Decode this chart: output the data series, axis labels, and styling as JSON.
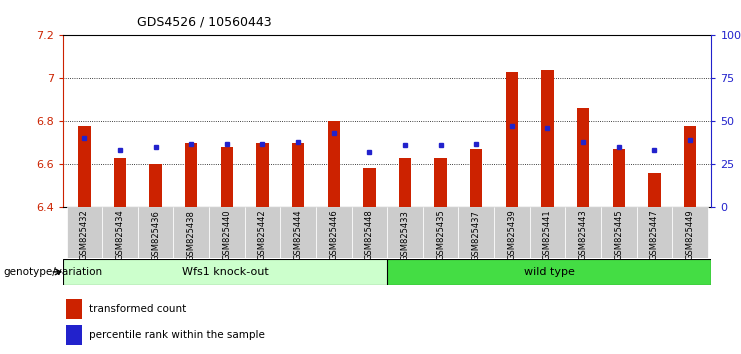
{
  "title": "GDS4526 / 10560443",
  "samples": [
    "GSM825432",
    "GSM825434",
    "GSM825436",
    "GSM825438",
    "GSM825440",
    "GSM825442",
    "GSM825444",
    "GSM825446",
    "GSM825448",
    "GSM825433",
    "GSM825435",
    "GSM825437",
    "GSM825439",
    "GSM825441",
    "GSM825443",
    "GSM825445",
    "GSM825447",
    "GSM825449"
  ],
  "red_values": [
    6.78,
    6.63,
    6.6,
    6.7,
    6.68,
    6.7,
    6.7,
    6.8,
    6.58,
    6.63,
    6.63,
    6.67,
    7.03,
    7.04,
    6.86,
    6.67,
    6.56,
    6.78
  ],
  "blue_values": [
    40,
    33,
    35,
    37,
    37,
    37,
    38,
    43,
    32,
    36,
    36,
    37,
    47,
    46,
    38,
    35,
    33,
    39
  ],
  "group1_label": "Wfs1 knock-out",
  "group2_label": "wild type",
  "group1_count": 9,
  "group2_count": 9,
  "ylim_left": [
    6.4,
    7.2
  ],
  "ylim_right": [
    0,
    100
  ],
  "yticks_left": [
    6.4,
    6.6,
    6.8,
    7.0,
    7.2
  ],
  "ytick_labels_left": [
    "6.4",
    "6.6",
    "6.8",
    "7",
    "7.2"
  ],
  "yticks_right": [
    0,
    25,
    50,
    75,
    100
  ],
  "ytick_labels_right": [
    "0",
    "25",
    "50",
    "75",
    "100%"
  ],
  "bar_color": "#cc2200",
  "dot_color": "#2222cc",
  "bar_width": 0.35,
  "group1_color_light": "#ccffcc",
  "group2_color_dark": "#44dd44",
  "group_label_prefix": "genotype/variation",
  "legend_red": "transformed count",
  "legend_blue": "percentile rank within the sample",
  "tick_bg_color": "#cccccc"
}
